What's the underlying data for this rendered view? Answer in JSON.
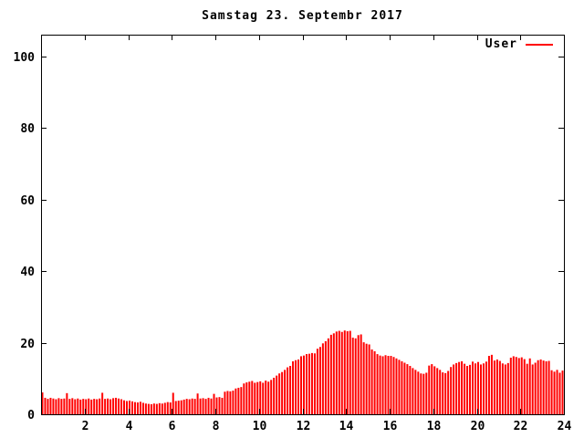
{
  "chart_data": {
    "type": "bar",
    "style": "impulses",
    "title": "Samstag 23. Septembr 2017",
    "xlabel": "",
    "ylabel": "",
    "xlim": [
      0,
      24
    ],
    "ylim": [
      0,
      106
    ],
    "x_ticks": [
      2,
      4,
      6,
      8,
      10,
      12,
      14,
      16,
      18,
      20,
      22,
      24
    ],
    "y_ticks": [
      0,
      20,
      40,
      60,
      80,
      100
    ],
    "grid": false,
    "legend_position": "top-right-inside",
    "background_color": "#ffffff",
    "border_color": "#000000",
    "interval_minutes": 7.5,
    "series": [
      {
        "name": "User",
        "color": "#ff0000",
        "values": [
          6.1,
          4.6,
          4.3,
          4.6,
          4.4,
          4.2,
          4.5,
          4.3,
          4.4,
          5.9,
          4.3,
          4.5,
          4.2,
          4.4,
          4.1,
          4.3,
          4.2,
          4.4,
          4.1,
          4.3,
          4.2,
          4.4,
          6.0,
          4.3,
          4.4,
          4.2,
          4.5,
          4.6,
          4.4,
          4.2,
          3.9,
          3.7,
          3.8,
          3.6,
          3.4,
          3.3,
          3.5,
          3.2,
          3.0,
          2.9,
          2.8,
          3.0,
          2.9,
          3.1,
          3.0,
          3.2,
          3.4,
          3.3,
          6.0,
          3.7,
          3.8,
          3.9,
          4.1,
          4.3,
          4.2,
          4.4,
          4.3,
          5.8,
          4.4,
          4.5,
          4.3,
          4.6,
          4.4,
          5.7,
          4.7,
          4.8,
          4.6,
          6.3,
          6.5,
          6.4,
          6.6,
          7.2,
          7.4,
          7.6,
          8.6,
          8.9,
          9.1,
          9.3,
          8.8,
          9.0,
          9.2,
          8.8,
          9.4,
          9.1,
          9.6,
          10.2,
          10.8,
          11.4,
          11.8,
          12.4,
          13.1,
          13.5,
          14.8,
          15.1,
          15.3,
          16.2,
          16.4,
          16.8,
          16.9,
          17.1,
          17.0,
          18.3,
          18.8,
          19.8,
          20.4,
          21.2,
          22.2,
          22.6,
          23.1,
          23.3,
          23.0,
          23.4,
          23.2,
          23.3,
          21.4,
          21.2,
          22.1,
          22.3,
          20.1,
          19.7,
          19.5,
          18.1,
          17.6,
          16.8,
          16.4,
          16.2,
          16.5,
          16.3,
          16.3,
          16.0,
          15.6,
          15.2,
          14.8,
          14.4,
          14.0,
          13.5,
          12.9,
          12.4,
          11.9,
          11.4,
          11.3,
          11.6,
          13.6,
          14.0,
          13.4,
          12.9,
          12.4,
          11.7,
          11.5,
          12.1,
          13.2,
          13.9,
          14.3,
          14.6,
          14.8,
          14.1,
          13.5,
          13.8,
          14.7,
          14.2,
          14.6,
          13.9,
          14.2,
          14.7,
          16.3,
          16.6,
          15.0,
          15.3,
          14.9,
          14.2,
          13.9,
          14.3,
          15.8,
          16.2,
          16.0,
          15.7,
          15.9,
          15.4,
          14.1,
          15.6,
          13.9,
          14.4,
          15.1,
          15.3,
          15.0,
          14.8,
          14.9,
          12.3,
          11.9,
          12.4,
          11.6,
          12.2
        ]
      }
    ]
  }
}
